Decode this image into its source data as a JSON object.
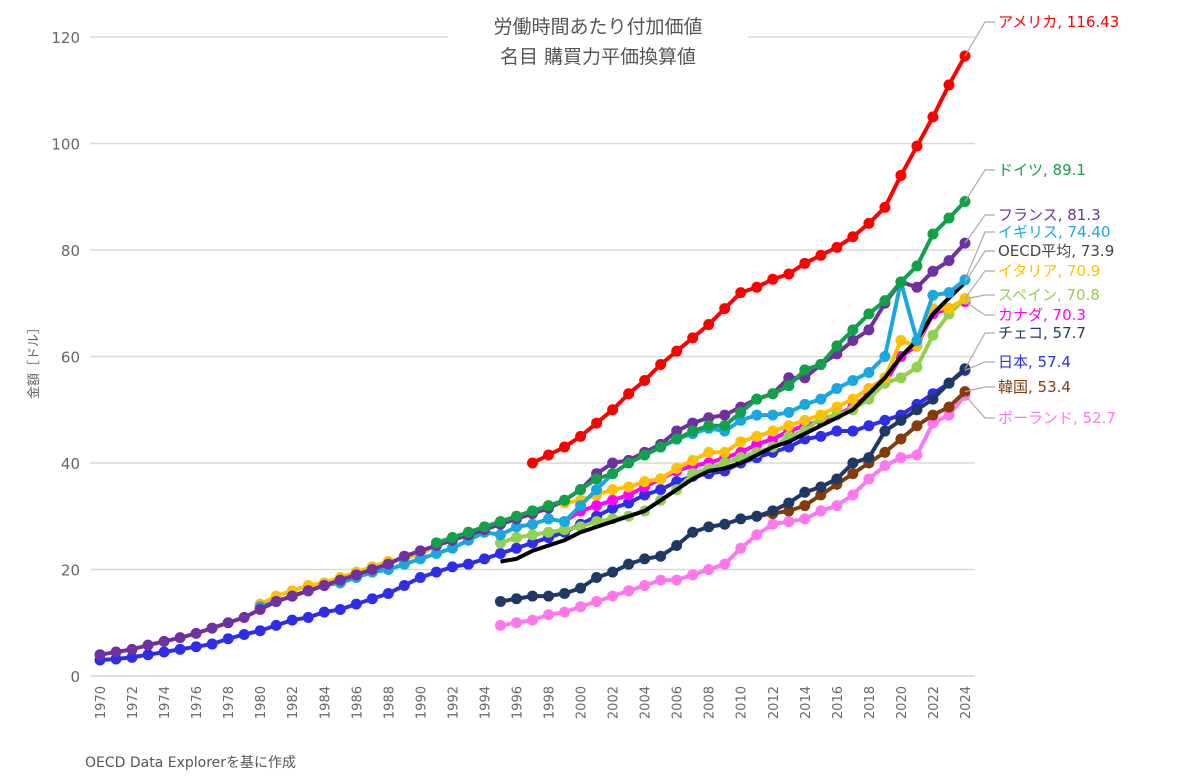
{
  "chart_data": {
    "type": "line",
    "title": [
      "労働時間あたり付加価値",
      "名目 購買力平価換算値"
    ],
    "ylabel": "金額［ドル］",
    "xlabel": "",
    "source": "OECD Data Explorerを基に作成",
    "ylim": [
      0,
      120
    ],
    "yticks": [
      0,
      20,
      40,
      60,
      80,
      100,
      120
    ],
    "xlim": [
      1970,
      2024
    ],
    "xticks": [
      1970,
      1972,
      1974,
      1976,
      1978,
      1980,
      1982,
      1984,
      1986,
      1988,
      1990,
      1992,
      1994,
      1996,
      1998,
      2000,
      2002,
      2004,
      2006,
      2008,
      2010,
      2012,
      2014,
      2016,
      2018,
      2020,
      2022,
      2024
    ],
    "grid": true,
    "series": [
      {
        "name": "アメリカ",
        "label": "アメリカ, 116.43",
        "color": "#ff0000",
        "start": 1997,
        "values": [
          40,
          41.5,
          43,
          45,
          47.5,
          50,
          53,
          55.5,
          58.5,
          61,
          63.5,
          66,
          69,
          72,
          73,
          74.5,
          75.5,
          77.5,
          79,
          80.5,
          82.5,
          85,
          88,
          94,
          99.5,
          105,
          111,
          116.43
        ]
      },
      {
        "name": "ドイツ",
        "label": "ドイツ, 89.1",
        "color": "#13a04a",
        "start": 1991,
        "values": [
          25,
          26,
          27,
          28,
          29,
          30,
          31,
          32,
          33,
          35,
          37,
          38,
          40,
          41.5,
          43,
          44.5,
          46,
          47,
          47,
          49.5,
          52,
          53,
          54.5,
          57.5,
          58.5,
          62,
          65,
          68,
          70.5,
          74,
          77,
          83,
          86,
          89.1
        ]
      },
      {
        "name": "フランス",
        "label": "フランス, 81.3",
        "color": "#7030a0",
        "start": 1970,
        "values": [
          4,
          4.5,
          5,
          5.8,
          6.5,
          7.2,
          8,
          9,
          10,
          11,
          12.5,
          14,
          15,
          16,
          17,
          18,
          19,
          20,
          21,
          22.5,
          23.5,
          24.5,
          25.5,
          26.5,
          27.5,
          28.5,
          29.5,
          30.5,
          31.5,
          33,
          35,
          38,
          40,
          40.5,
          42,
          43.5,
          46,
          47.5,
          48.5,
          49,
          50.5,
          52,
          53,
          56,
          56,
          58.5,
          60.5,
          63,
          65,
          70,
          74,
          73,
          76,
          78,
          81.3
        ]
      },
      {
        "name": "イギリス",
        "label": "イギリス, 74.40",
        "color": "#1aa7e0",
        "start": 1980,
        "values": [
          13,
          14,
          15,
          16,
          17,
          17.5,
          18.5,
          19.5,
          20,
          21,
          22,
          23,
          24,
          25.5,
          27,
          26.5,
          28,
          28.5,
          29.5,
          29,
          32,
          35,
          38,
          40,
          41.5,
          43,
          44.5,
          45.5,
          46.5,
          46,
          48,
          49,
          49,
          49.5,
          51,
          52,
          54,
          55.5,
          57,
          60,
          74,
          63,
          71.5,
          72,
          74.4
        ]
      },
      {
        "name": "OECD平均",
        "label": "OECD平均, 73.9",
        "color": "#000000",
        "start": 1995,
        "marker": false,
        "values": [
          21.5,
          22,
          23.5,
          24.5,
          25.5,
          27,
          28,
          29,
          30,
          31,
          33,
          35,
          37,
          38.5,
          39,
          40,
          41.5,
          43,
          44,
          45.5,
          47,
          48.5,
          50,
          53,
          56,
          60,
          63,
          68,
          71,
          73.9
        ]
      },
      {
        "name": "イタリア",
        "label": "イタリア, 70.9",
        "color": "#ffc000",
        "start": 1980,
        "values": [
          13.5,
          15,
          16,
          17,
          17.5,
          18.5,
          19.5,
          20.5,
          21.5,
          22,
          23,
          24.5,
          26,
          27,
          28,
          29,
          30,
          31,
          32,
          32.5,
          33,
          34,
          35,
          35.5,
          36.5,
          37,
          39,
          40.5,
          42,
          42,
          44,
          45,
          46,
          47,
          48,
          49,
          50.5,
          52,
          54,
          56,
          63,
          62,
          69,
          69,
          70.9
        ]
      },
      {
        "name": "スペイン",
        "label": "スペイン, 70.8",
        "color": "#92d050",
        "start": 1995,
        "values": [
          25,
          26,
          26.5,
          27,
          27.5,
          28,
          29,
          29.5,
          30,
          31,
          33,
          35,
          38,
          39,
          40,
          41,
          42,
          43,
          45,
          46,
          48.5,
          49,
          50,
          52,
          55,
          56,
          58,
          64,
          68,
          70.8
        ]
      },
      {
        "name": "カナダ",
        "label": "カナダ, 70.3",
        "color": "#ff00ff",
        "start": 1999,
        "values": [
          29,
          31,
          32,
          33,
          34,
          35.5,
          37,
          38.5,
          39.5,
          40,
          41,
          42,
          43.5,
          44.5,
          46,
          47,
          48,
          49,
          50.5,
          53,
          55,
          60,
          62,
          68,
          69,
          70.3
        ]
      },
      {
        "name": "チェコ",
        "label": "チェコ, 57.7",
        "color": "#1f3864",
        "start": 1995,
        "values": [
          14,
          14.5,
          15,
          15,
          15.5,
          16.5,
          18.5,
          19.5,
          21,
          22,
          22.5,
          24.5,
          27,
          28,
          28.5,
          29.5,
          30,
          31,
          32.5,
          34.5,
          35.5,
          37,
          40,
          41,
          46,
          48,
          50,
          52,
          55,
          57.7
        ]
      },
      {
        "name": "日本",
        "label": "日本, 57.4",
        "color": "#2e2ee8",
        "start": 1970,
        "values": [
          3,
          3.2,
          3.5,
          4,
          4.5,
          5,
          5.5,
          6,
          7,
          7.8,
          8.5,
          9.5,
          10.5,
          11,
          12,
          12.5,
          13.5,
          14.5,
          15.5,
          17,
          18.5,
          19.5,
          20.5,
          21,
          22,
          23,
          24,
          25,
          26,
          27,
          28.5,
          30,
          31.5,
          32.5,
          34,
          35,
          36.5,
          37.5,
          38,
          38.5,
          40,
          41,
          42,
          43,
          44.5,
          45,
          46,
          46,
          47,
          48,
          49,
          51,
          53,
          55,
          57.4
        ]
      },
      {
        "name": "韓国",
        "label": "韓国, 53.4",
        "color": "#843c0c",
        "start": 2011,
        "values": [
          30,
          30.5,
          31,
          32,
          34,
          36,
          38,
          40,
          42,
          44.5,
          47,
          49,
          50.5,
          53.4
        ]
      },
      {
        "name": "ポーランド",
        "label": "ポーランド, 52.7",
        "color": "#ff77ee",
        "start": 1995,
        "values": [
          9.5,
          10,
          10.5,
          11.5,
          12,
          13,
          14,
          15,
          16,
          17,
          18,
          18,
          19,
          20,
          21,
          24,
          26.5,
          28.5,
          29,
          29.5,
          31,
          32,
          34,
          37,
          39.5,
          41,
          41.5,
          47.5,
          49,
          52.7
        ]
      }
    ]
  }
}
